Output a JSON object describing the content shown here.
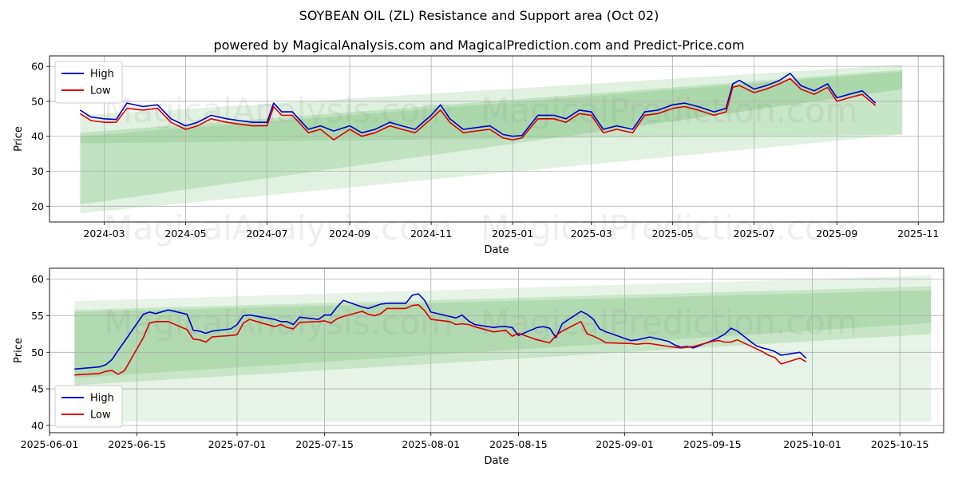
{
  "title": "SOYBEAN OIL (ZL) Resistance and Support area (Oct 02)",
  "subtitle": "powered by MagicalAnalysis.com and MagicalPrediction.com and Predict-Price.com",
  "watermarks": [
    "MagicalAnalysis.com",
    "MagicalPrediction.com"
  ],
  "colors": {
    "high": "#0000cc",
    "low": "#dd0000",
    "band": "#2e9e2e",
    "grid": "#b0b0b0"
  },
  "chart_data": [
    {
      "type": "line",
      "name": "top-panel",
      "xlabel": "Date",
      "ylabel": "Price",
      "ylim": [
        15.5,
        63
      ],
      "xlim": [
        "2024-01-20",
        "2025-11-20"
      ],
      "grid": true,
      "legend": "top-left",
      "yticks": [
        20,
        30,
        40,
        50,
        60
      ],
      "xticks": [
        "2024-03",
        "2024-05",
        "2024-07",
        "2024-09",
        "2024-11",
        "2025-01",
        "2025-03",
        "2025-05",
        "2025-07",
        "2025-09",
        "2025-11"
      ],
      "xtick_dates": [
        "2024-03-01",
        "2024-05-01",
        "2024-07-01",
        "2024-09-01",
        "2024-11-01",
        "2025-01-01",
        "2025-03-01",
        "2025-05-01",
        "2025-07-01",
        "2025-09-01",
        "2025-11-01"
      ],
      "bands": [
        {
          "x": [
            "2024-02-12",
            "2025-10-20"
          ],
          "upper": [
            46,
            60.5
          ],
          "lower": [
            18,
            40.5
          ],
          "opacity": 0.14
        },
        {
          "x": [
            "2024-02-12",
            "2025-10-20"
          ],
          "upper": [
            41,
            59
          ],
          "lower": [
            20.5,
            53.5
          ],
          "opacity": 0.18
        },
        {
          "x": [
            "2024-02-12",
            "2025-10-20"
          ],
          "upper": [
            40,
            58.5
          ],
          "lower": [
            38,
            40.5
          ],
          "opacity": 0.14
        }
      ],
      "series": [
        {
          "name": "High",
          "x": [
            "2024-02-12",
            "2024-02-20",
            "2024-03-01",
            "2024-03-10",
            "2024-03-18",
            "2024-03-30",
            "2024-04-10",
            "2024-04-20",
            "2024-05-01",
            "2024-05-10",
            "2024-05-20",
            "2024-06-01",
            "2024-06-10",
            "2024-06-20",
            "2024-07-01",
            "2024-07-06",
            "2024-07-12",
            "2024-07-20",
            "2024-08-01",
            "2024-08-10",
            "2024-08-20",
            "2024-09-01",
            "2024-09-10",
            "2024-09-20",
            "2024-10-01",
            "2024-10-10",
            "2024-10-20",
            "2024-11-01",
            "2024-11-08",
            "2024-11-15",
            "2024-11-25",
            "2024-12-05",
            "2024-12-15",
            "2024-12-25",
            "2025-01-01",
            "2025-01-08",
            "2025-01-20",
            "2025-02-01",
            "2025-02-10",
            "2025-02-20",
            "2025-03-01",
            "2025-03-10",
            "2025-03-20",
            "2025-04-01",
            "2025-04-10",
            "2025-04-20",
            "2025-05-01",
            "2025-05-10",
            "2025-05-20",
            "2025-06-01",
            "2025-06-10",
            "2025-06-15",
            "2025-06-20",
            "2025-07-01",
            "2025-07-10",
            "2025-07-20",
            "2025-07-28",
            "2025-08-05",
            "2025-08-15",
            "2025-08-25",
            "2025-09-01",
            "2025-09-10",
            "2025-09-20",
            "2025-09-30"
          ],
          "values": [
            47.5,
            45.5,
            45,
            44.8,
            49.5,
            48.5,
            49,
            45,
            43,
            44,
            46,
            45,
            44.5,
            44,
            44,
            49.5,
            47,
            47,
            42,
            43,
            41.5,
            43,
            41,
            42,
            44,
            43,
            42,
            46,
            49,
            45,
            42,
            42.5,
            43,
            40.5,
            40,
            40.2,
            46,
            46,
            45,
            47.5,
            47,
            42,
            43,
            42,
            47,
            47.5,
            49,
            49.5,
            48.5,
            47,
            48,
            55,
            56,
            53.5,
            54.5,
            56,
            58,
            54.5,
            53,
            55,
            51,
            52,
            53,
            49.5
          ]
        },
        {
          "name": "Low",
          "x": [
            "2024-02-12",
            "2024-02-20",
            "2024-03-01",
            "2024-03-10",
            "2024-03-18",
            "2024-03-30",
            "2024-04-10",
            "2024-04-20",
            "2024-05-01",
            "2024-05-10",
            "2024-05-20",
            "2024-06-01",
            "2024-06-10",
            "2024-06-20",
            "2024-07-01",
            "2024-07-06",
            "2024-07-12",
            "2024-07-20",
            "2024-08-01",
            "2024-08-10",
            "2024-08-20",
            "2024-09-01",
            "2024-09-10",
            "2024-09-20",
            "2024-10-01",
            "2024-10-10",
            "2024-10-20",
            "2024-11-01",
            "2024-11-08",
            "2024-11-15",
            "2024-11-25",
            "2024-12-05",
            "2024-12-15",
            "2024-12-25",
            "2025-01-01",
            "2025-01-08",
            "2025-01-20",
            "2025-02-01",
            "2025-02-10",
            "2025-02-20",
            "2025-03-01",
            "2025-03-10",
            "2025-03-20",
            "2025-04-01",
            "2025-04-10",
            "2025-04-20",
            "2025-05-01",
            "2025-05-10",
            "2025-05-20",
            "2025-06-01",
            "2025-06-10",
            "2025-06-15",
            "2025-06-20",
            "2025-07-01",
            "2025-07-10",
            "2025-07-20",
            "2025-07-28",
            "2025-08-05",
            "2025-08-15",
            "2025-08-25",
            "2025-09-01",
            "2025-09-10",
            "2025-09-20",
            "2025-09-30"
          ],
          "values": [
            46.5,
            44.5,
            44,
            44,
            48,
            47.5,
            48,
            44,
            42,
            43,
            45,
            44,
            43.5,
            43,
            43,
            48.5,
            46,
            46,
            41,
            42,
            39,
            42,
            40,
            41,
            43,
            42,
            41,
            45,
            47.5,
            44,
            41,
            41.5,
            42,
            39.5,
            39,
            39.5,
            45,
            45,
            44,
            46.5,
            46,
            41,
            42,
            41,
            46,
            46.5,
            48,
            48.5,
            47.5,
            46,
            47,
            54,
            54.5,
            52.5,
            53.5,
            55,
            56.5,
            53.5,
            52,
            54,
            50,
            51,
            52,
            48.8
          ]
        }
      ]
    },
    {
      "type": "line",
      "name": "bottom-panel",
      "xlabel": "Date",
      "ylabel": "Price",
      "ylim": [
        39,
        61.5
      ],
      "xlim": [
        "2025-06-01",
        "2025-10-22"
      ],
      "grid": true,
      "legend": "bottom-left",
      "yticks": [
        40,
        45,
        50,
        55,
        60
      ],
      "xticks": [
        "2025-06-01",
        "2025-06-15",
        "2025-07-01",
        "2025-07-15",
        "2025-08-01",
        "2025-08-15",
        "2025-09-01",
        "2025-09-15",
        "2025-10-01",
        "2025-10-15"
      ],
      "xtick_dates": [
        "2025-06-01",
        "2025-06-15",
        "2025-07-01",
        "2025-07-15",
        "2025-08-01",
        "2025-08-15",
        "2025-09-01",
        "2025-09-15",
        "2025-10-01",
        "2025-10-15"
      ],
      "bands": [
        {
          "x": [
            "2025-06-05",
            "2025-10-20"
          ],
          "upper": [
            57,
            60.5
          ],
          "lower": [
            40.5,
            40.5
          ],
          "opacity": 0.12
        },
        {
          "x": [
            "2025-06-05",
            "2025-10-20"
          ],
          "upper": [
            55.8,
            59
          ],
          "lower": [
            45.5,
            52.5
          ],
          "opacity": 0.16
        },
        {
          "x": [
            "2025-06-05",
            "2025-10-20"
          ],
          "upper": [
            55.5,
            58.5
          ],
          "lower": [
            46.5,
            54
          ],
          "opacity": 0.14
        }
      ],
      "series": [
        {
          "name": "High",
          "x": [
            "2025-06-05",
            "2025-06-09",
            "2025-06-10",
            "2025-06-11",
            "2025-06-12",
            "2025-06-13",
            "2025-06-16",
            "2025-06-17",
            "2025-06-18",
            "2025-06-20",
            "2025-06-23",
            "2025-06-24",
            "2025-06-25",
            "2025-06-26",
            "2025-06-27",
            "2025-06-30",
            "2025-07-01",
            "2025-07-02",
            "2025-07-03",
            "2025-07-07",
            "2025-07-08",
            "2025-07-09",
            "2025-07-10",
            "2025-07-11",
            "2025-07-14",
            "2025-07-15",
            "2025-07-16",
            "2025-07-17",
            "2025-07-18",
            "2025-07-21",
            "2025-07-22",
            "2025-07-23",
            "2025-07-24",
            "2025-07-25",
            "2025-07-28",
            "2025-07-29",
            "2025-07-30",
            "2025-07-31",
            "2025-08-01",
            "2025-08-04",
            "2025-08-05",
            "2025-08-06",
            "2025-08-07",
            "2025-08-08",
            "2025-08-11",
            "2025-08-12",
            "2025-08-13",
            "2025-08-14",
            "2025-08-15",
            "2025-08-18",
            "2025-08-19",
            "2025-08-20",
            "2025-08-21",
            "2025-08-22",
            "2025-08-25",
            "2025-08-26",
            "2025-08-27",
            "2025-08-28",
            "2025-08-29",
            "2025-09-02",
            "2025-09-03",
            "2025-09-04",
            "2025-09-05",
            "2025-09-08",
            "2025-09-09",
            "2025-09-10",
            "2025-09-11",
            "2025-09-12",
            "2025-09-15",
            "2025-09-16",
            "2025-09-17",
            "2025-09-18",
            "2025-09-19",
            "2025-09-22",
            "2025-09-23",
            "2025-09-24",
            "2025-09-25",
            "2025-09-26",
            "2025-09-29",
            "2025-09-30"
          ],
          "values": [
            47.7,
            48,
            48.3,
            49,
            50.3,
            51.5,
            55.2,
            55.5,
            55.3,
            55.8,
            55.2,
            53,
            52.9,
            52.6,
            52.9,
            53.2,
            53.8,
            55,
            55.1,
            54.5,
            54.2,
            54.2,
            53.8,
            54.8,
            54.5,
            55.1,
            55.1,
            56.2,
            57.1,
            56.2,
            56,
            56.3,
            56.6,
            56.7,
            56.7,
            57.8,
            58,
            57.1,
            55.5,
            54.9,
            54.7,
            55.1,
            54.3,
            53.8,
            53.4,
            53.5,
            53.5,
            53.4,
            52.3,
            53.4,
            53.5,
            53.3,
            52,
            53.9,
            55.6,
            55.2,
            54.5,
            53.2,
            52.8,
            51.6,
            51.7,
            51.9,
            52.1,
            51.5,
            51,
            50.7,
            50.8,
            50.6,
            51.6,
            52,
            52.5,
            53.3,
            52.9,
            50.9,
            50.6,
            50.4,
            50.1,
            49.6,
            50,
            49.2
          ]
        },
        {
          "name": "Low",
          "x": [
            "2025-06-05",
            "2025-06-09",
            "2025-06-10",
            "2025-06-11",
            "2025-06-12",
            "2025-06-13",
            "2025-06-16",
            "2025-06-17",
            "2025-06-18",
            "2025-06-20",
            "2025-06-23",
            "2025-06-24",
            "2025-06-25",
            "2025-06-26",
            "2025-06-27",
            "2025-06-30",
            "2025-07-01",
            "2025-07-02",
            "2025-07-03",
            "2025-07-07",
            "2025-07-08",
            "2025-07-09",
            "2025-07-10",
            "2025-07-11",
            "2025-07-14",
            "2025-07-15",
            "2025-07-16",
            "2025-07-17",
            "2025-07-18",
            "2025-07-21",
            "2025-07-22",
            "2025-07-23",
            "2025-07-24",
            "2025-07-25",
            "2025-07-28",
            "2025-07-29",
            "2025-07-30",
            "2025-07-31",
            "2025-08-01",
            "2025-08-04",
            "2025-08-05",
            "2025-08-06",
            "2025-08-07",
            "2025-08-08",
            "2025-08-11",
            "2025-08-12",
            "2025-08-13",
            "2025-08-14",
            "2025-08-15",
            "2025-08-18",
            "2025-08-19",
            "2025-08-20",
            "2025-08-21",
            "2025-08-22",
            "2025-08-25",
            "2025-08-26",
            "2025-08-27",
            "2025-08-28",
            "2025-08-29",
            "2025-09-02",
            "2025-09-03",
            "2025-09-04",
            "2025-09-05",
            "2025-09-08",
            "2025-09-09",
            "2025-09-10",
            "2025-09-11",
            "2025-09-12",
            "2025-09-15",
            "2025-09-16",
            "2025-09-17",
            "2025-09-18",
            "2025-09-19",
            "2025-09-22",
            "2025-09-23",
            "2025-09-24",
            "2025-09-25",
            "2025-09-26",
            "2025-09-29",
            "2025-09-30"
          ],
          "values": [
            46.9,
            47.1,
            47.4,
            47.5,
            47,
            47.5,
            52,
            54,
            54.2,
            54.2,
            53.1,
            51.8,
            51.7,
            51.4,
            52.1,
            52.3,
            52.4,
            54,
            54.5,
            53.5,
            53.8,
            53.4,
            53.2,
            54.1,
            54.2,
            54.3,
            54,
            54.6,
            54.9,
            55.6,
            55.2,
            55,
            55.3,
            56,
            56,
            56.4,
            56.5,
            55.7,
            54.5,
            54.2,
            53.8,
            53.9,
            53.8,
            53.5,
            52.8,
            52.9,
            53,
            52.2,
            52.6,
            51.7,
            51.5,
            51.3,
            52.3,
            52.9,
            54.2,
            52.5,
            52.2,
            51.8,
            51.3,
            51.2,
            51.1,
            51.2,
            51.2,
            50.8,
            50.7,
            50.6,
            50.7,
            50.8,
            51.5,
            51.6,
            51.4,
            51.4,
            51.7,
            50.5,
            50.1,
            49.6,
            49.3,
            48.4,
            49.2,
            48.7
          ]
        }
      ]
    }
  ]
}
